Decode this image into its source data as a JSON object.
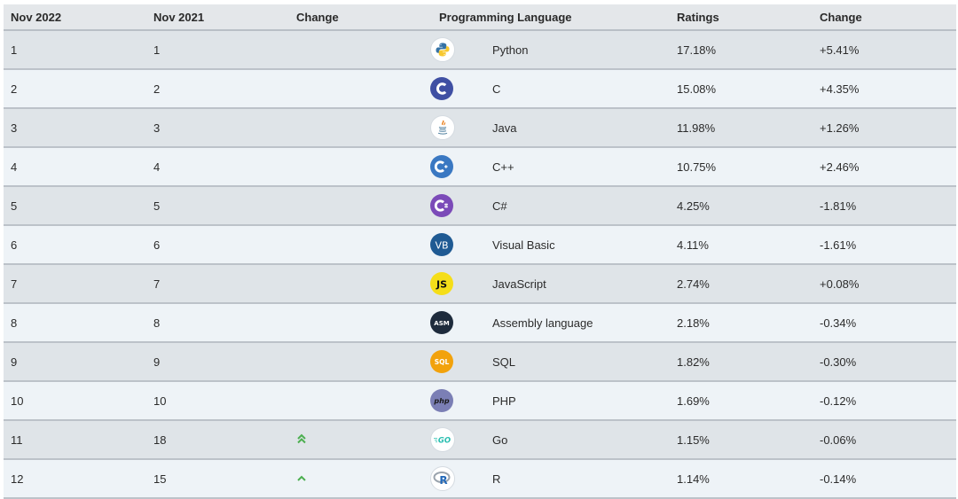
{
  "headers": {
    "rank_now": "Nov 2022",
    "rank_prev": "Nov 2021",
    "change": "Change",
    "language": "Programming Language",
    "ratings": "Ratings",
    "rating_change": "Change"
  },
  "rows": [
    {
      "now": "1",
      "prev": "1",
      "trend": "",
      "icon": "python-icon",
      "language": "Python",
      "rating": "17.18%",
      "change": "+5.41%"
    },
    {
      "now": "2",
      "prev": "2",
      "trend": "",
      "icon": "c-icon",
      "language": "C",
      "rating": "15.08%",
      "change": "+4.35%"
    },
    {
      "now": "3",
      "prev": "3",
      "trend": "",
      "icon": "java-icon",
      "language": "Java",
      "rating": "11.98%",
      "change": "+1.26%"
    },
    {
      "now": "4",
      "prev": "4",
      "trend": "",
      "icon": "cpp-icon",
      "language": "C++",
      "rating": "10.75%",
      "change": "+2.46%"
    },
    {
      "now": "5",
      "prev": "5",
      "trend": "",
      "icon": "csharp-icon",
      "language": "C#",
      "rating": "4.25%",
      "change": "-1.81%"
    },
    {
      "now": "6",
      "prev": "6",
      "trend": "",
      "icon": "visual-basic-icon",
      "language": "Visual Basic",
      "rating": "4.11%",
      "change": "-1.61%"
    },
    {
      "now": "7",
      "prev": "7",
      "trend": "",
      "icon": "javascript-icon",
      "language": "JavaScript",
      "rating": "2.74%",
      "change": "+0.08%"
    },
    {
      "now": "8",
      "prev": "8",
      "trend": "",
      "icon": "assembly-icon",
      "language": "Assembly language",
      "rating": "2.18%",
      "change": "-0.34%"
    },
    {
      "now": "9",
      "prev": "9",
      "trend": "",
      "icon": "sql-icon",
      "language": "SQL",
      "rating": "1.82%",
      "change": "-0.30%"
    },
    {
      "now": "10",
      "prev": "10",
      "trend": "",
      "icon": "php-icon",
      "language": "PHP",
      "rating": "1.69%",
      "change": "-0.12%"
    },
    {
      "now": "11",
      "prev": "18",
      "trend": "double-up",
      "icon": "go-icon",
      "language": "Go",
      "rating": "1.15%",
      "change": "-0.06%"
    },
    {
      "now": "12",
      "prev": "15",
      "trend": "up",
      "icon": "r-icon",
      "language": "R",
      "rating": "1.14%",
      "change": "-0.14%"
    }
  ],
  "trend_icons": {
    "double-up": "double-chevron-up-icon",
    "up": "chevron-up-icon"
  },
  "colors": {
    "trend_up": "#4caf50"
  }
}
